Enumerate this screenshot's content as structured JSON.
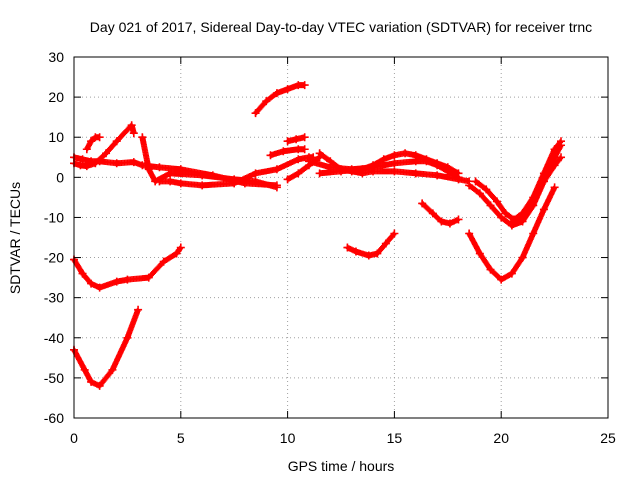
{
  "chart_data": {
    "type": "scatter",
    "title": "Day 021 of 2017, Sidereal Day-to-day VTEC variation (SDTVAR) for receiver trnc",
    "xlabel": "GPS time / hours",
    "ylabel": "SDTVAR / TECUs",
    "xlim": [
      0,
      25
    ],
    "ylim": [
      -60,
      30
    ],
    "xticks": [
      "0",
      "5",
      "10",
      "15",
      "20",
      "25"
    ],
    "yticks": [
      "30",
      "20",
      "10",
      "0",
      "-10",
      "-20",
      "-30",
      "-40",
      "-50",
      "-60"
    ],
    "grid": true,
    "marker": "+",
    "color": "#ff0000",
    "series": [
      {
        "name": "s1",
        "x": [
          0,
          0.5,
          0.8,
          1.2,
          1.8,
          2.5,
          3.0
        ],
        "y": [
          -43,
          -48,
          -51,
          -52,
          -48,
          -40,
          -33
        ]
      },
      {
        "name": "s2",
        "x": [
          0,
          0.4,
          0.8,
          1.2,
          2.0,
          2.5,
          3.5,
          4.2,
          4.8,
          5.0
        ],
        "y": [
          -20.5,
          -24,
          -26.5,
          -27.5,
          -26,
          -25.5,
          -25,
          -21,
          -19,
          -17.5
        ]
      },
      {
        "name": "s3",
        "x": [
          0,
          0.4,
          0.8,
          1.2,
          2.0,
          2.8,
          3.2,
          4.0,
          5.0,
          6.5,
          8.0,
          9.5
        ],
        "y": [
          5,
          4.5,
          4,
          4,
          3.5,
          3.8,
          3,
          2.5,
          2,
          0.5,
          -1.5,
          -2
        ]
      },
      {
        "name": "s4",
        "x": [
          0,
          0.3,
          0.6,
          1.0,
          1.5,
          2.0,
          2.7,
          2.8
        ],
        "y": [
          3.5,
          3,
          2.8,
          3.5,
          6,
          9,
          13,
          11
        ]
      },
      {
        "name": "s5",
        "x": [
          0.6,
          0.8,
          1.0,
          1.2
        ],
        "y": [
          7,
          9,
          10,
          10
        ]
      },
      {
        "name": "s6",
        "x": [
          3.2,
          3.5,
          3.8,
          4.5,
          6.0,
          7.5,
          8.5,
          9.5
        ],
        "y": [
          10,
          2,
          -1,
          1,
          0.5,
          -0.5,
          -1,
          -2.5
        ]
      },
      {
        "name": "s7",
        "x": [
          4.0,
          4.5,
          5.0,
          6.0,
          7.5,
          8.5,
          9.5,
          10.5,
          11.0,
          11.2
        ],
        "y": [
          -1,
          -1,
          -1.5,
          -2,
          -1.5,
          1,
          2,
          4.5,
          5,
          5
        ]
      },
      {
        "name": "s8",
        "x": [
          8.5,
          9.0,
          9.5,
          10.0,
          10.5,
          10.8
        ],
        "y": [
          16,
          19,
          21,
          22,
          23,
          23
        ]
      },
      {
        "name": "s9",
        "x": [
          10.0,
          10.4,
          10.8
        ],
        "y": [
          9,
          9.5,
          10
        ]
      },
      {
        "name": "s10",
        "x": [
          9.2,
          9.8,
          10.5,
          10.8
        ],
        "y": [
          5.5,
          6.5,
          7,
          7
        ]
      },
      {
        "name": "s11",
        "x": [
          10.0,
          10.5,
          11.0,
          11.5
        ],
        "y": [
          -0.5,
          1,
          3,
          5
        ]
      },
      {
        "name": "s12",
        "x": [
          11.5,
          12.0,
          12.5,
          13.0,
          13.5,
          14.0,
          15.0,
          16.0,
          17.0,
          18.0,
          18.5
        ],
        "y": [
          6,
          4,
          2,
          1.5,
          1,
          1.5,
          1.5,
          1,
          0.5,
          -0.5,
          -1
        ]
      },
      {
        "name": "s13",
        "x": [
          11.5,
          12.5,
          13.5,
          14.0,
          14.5,
          15.0,
          15.5,
          16.0,
          16.5,
          17.0,
          17.5,
          18.0
        ],
        "y": [
          1,
          1.5,
          2,
          3,
          4.5,
          5.5,
          6,
          5.5,
          4.5,
          3.5,
          2.5,
          1
        ]
      },
      {
        "name": "s14",
        "x": [
          11.0,
          12.0,
          13.0,
          14.0,
          15.0,
          16.0,
          16.5,
          17.0,
          17.5,
          18.0
        ],
        "y": [
          4,
          2.5,
          2,
          2.5,
          3.5,
          4,
          4,
          3,
          1.5,
          0
        ]
      },
      {
        "name": "s15",
        "x": [
          12.8,
          13.2,
          13.8,
          14.2,
          14.6,
          15.0
        ],
        "y": [
          -17.5,
          -18.5,
          -19.5,
          -19,
          -16.5,
          -14
        ]
      },
      {
        "name": "s16",
        "x": [
          16.3,
          16.8,
          17.2,
          17.6,
          18.0
        ],
        "y": [
          -6.5,
          -9,
          -11,
          -11.5,
          -10.5
        ]
      },
      {
        "name": "s17",
        "x": [
          18.5,
          19.0,
          19.5,
          20.0,
          20.5,
          21.0,
          21.5,
          22.0,
          22.5
        ],
        "y": [
          -14,
          -19,
          -23,
          -25.5,
          -24,
          -20,
          -14,
          -8,
          -2.5
        ]
      },
      {
        "name": "s18",
        "x": [
          18.5,
          19.0,
          19.5,
          20.0,
          20.5,
          21.0,
          21.5,
          22.0,
          22.5,
          22.8
        ],
        "y": [
          -2,
          -4,
          -7,
          -10,
          -12,
          -11,
          -7,
          -1,
          5,
          8
        ]
      },
      {
        "name": "s19",
        "x": [
          18.8,
          19.3,
          19.8,
          20.2,
          20.6,
          21.0,
          21.5,
          22.0,
          22.5,
          22.8
        ],
        "y": [
          -1,
          -3,
          -6,
          -9,
          -10.5,
          -9,
          -5,
          1,
          7,
          9
        ]
      },
      {
        "name": "s20",
        "x": [
          20.5,
          21.0,
          21.5,
          22.0,
          22.5,
          22.8
        ],
        "y": [
          -11,
          -10,
          -6,
          -1,
          3,
          5
        ]
      }
    ]
  }
}
